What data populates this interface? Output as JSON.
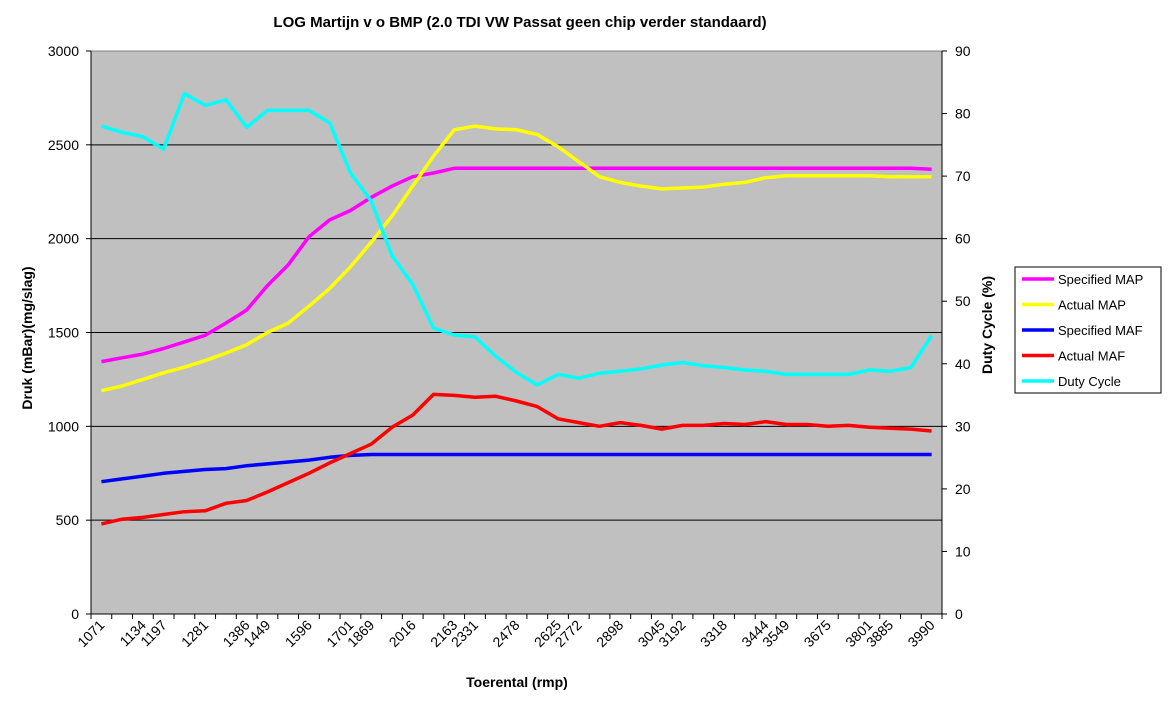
{
  "chart_data": {
    "type": "line",
    "title": "LOG Martijn  v o BMP (2.0  TDI VW Passat geen chip verder standaard)",
    "xlabel": "Toerental (rmp)",
    "ylabel": "Druk (mBar)(mg/slag)",
    "y2label": "Duty Cycle (%)",
    "ylim": [
      0,
      3000
    ],
    "y2lim": [
      0,
      90
    ],
    "yticks": [
      0,
      500,
      1000,
      1500,
      2000,
      2500,
      3000
    ],
    "y2ticks": [
      0,
      10,
      20,
      30,
      40,
      50,
      60,
      70,
      80,
      90
    ],
    "plot_background": "#C0C0C0",
    "grid": true,
    "legend_position": "right",
    "xtick_labels": [
      "1071",
      "1134",
      "1197",
      "1281",
      "1386",
      "1449",
      "1596",
      "1701",
      "1869",
      "2016",
      "2163",
      "2331",
      "2478",
      "2625",
      "2772",
      "2898",
      "3045",
      "3192",
      "3318",
      "3444",
      "3549",
      "3675",
      "3801",
      "3885",
      "3990"
    ],
    "point_count": 41,
    "series": [
      {
        "name": "Specified MAP",
        "axis": "left",
        "color": "#FF00FF",
        "values": [
          1345,
          1365,
          1385,
          1415,
          1450,
          1485,
          1550,
          1620,
          1750,
          1860,
          2010,
          2100,
          2150,
          2220,
          2280,
          2330,
          2350,
          2375,
          2375,
          2375,
          2375,
          2375,
          2375,
          2375,
          2375,
          2375,
          2375,
          2375,
          2375,
          2375,
          2375,
          2375,
          2375,
          2375,
          2375,
          2375,
          2375,
          2375,
          2375,
          2375,
          2370
        ]
      },
      {
        "name": "Actual MAP",
        "axis": "left",
        "color": "#FFFF00",
        "values": [
          1190,
          1215,
          1250,
          1285,
          1315,
          1350,
          1390,
          1435,
          1500,
          1550,
          1640,
          1735,
          1850,
          1980,
          2120,
          2280,
          2440,
          2580,
          2600,
          2585,
          2580,
          2555,
          2490,
          2410,
          2330,
          2300,
          2280,
          2265,
          2270,
          2275,
          2290,
          2300,
          2325,
          2335,
          2335,
          2335,
          2335,
          2335,
          2330,
          2330,
          2330
        ]
      },
      {
        "name": "Specified MAF",
        "axis": "left",
        "color": "#0000FF",
        "values": [
          705,
          720,
          735,
          750,
          760,
          770,
          775,
          790,
          800,
          810,
          820,
          835,
          845,
          850,
          850,
          850,
          850,
          850,
          850,
          850,
          850,
          850,
          850,
          850,
          850,
          850,
          850,
          850,
          850,
          850,
          850,
          850,
          850,
          850,
          850,
          850,
          850,
          850,
          850,
          850,
          850
        ]
      },
      {
        "name": "Actual MAF",
        "axis": "left",
        "color": "#FF0000",
        "values": [
          480,
          505,
          515,
          530,
          545,
          550,
          590,
          605,
          650,
          700,
          750,
          805,
          855,
          905,
          995,
          1060,
          1170,
          1165,
          1155,
          1160,
          1135,
          1105,
          1040,
          1020,
          1000,
          1020,
          1005,
          985,
          1005,
          1005,
          1015,
          1010,
          1025,
          1010,
          1010,
          1000,
          1005,
          995,
          990,
          985,
          975
        ]
      },
      {
        "name": "Duty Cycle",
        "axis": "right",
        "color": "#00FFFF",
        "values": [
          78,
          77,
          76.3,
          74.3,
          83.2,
          81.3,
          82.2,
          77.8,
          80.5,
          80.5,
          80.5,
          78.5,
          70.5,
          66,
          57.3,
          52.7,
          45.7,
          44.6,
          44.3,
          41.2,
          38.6,
          36.6,
          38.3,
          37.7,
          38.5,
          38.8,
          39.2,
          39.8,
          40.2,
          39.7,
          39.4,
          39,
          38.8,
          38.3,
          38.3,
          38.3,
          38.3,
          39,
          38.8,
          39.4,
          44.5
        ]
      }
    ]
  }
}
